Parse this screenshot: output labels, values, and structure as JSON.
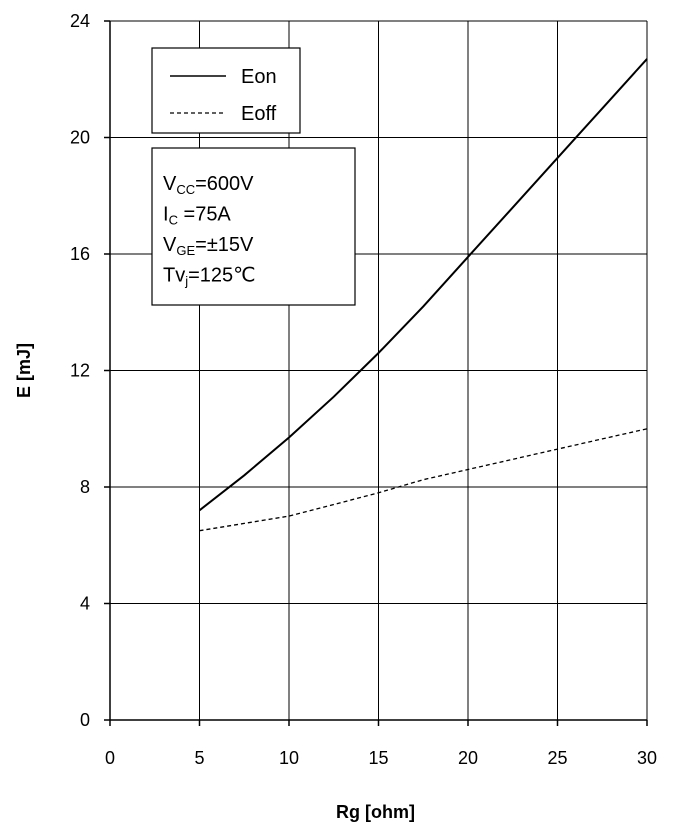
{
  "chart_data": {
    "type": "line",
    "title": "",
    "xlabel": "Rg  [ohm]",
    "ylabel": "E  [mJ]",
    "xlim": [
      0,
      30
    ],
    "ylim": [
      0,
      24
    ],
    "x_ticks": [
      "0",
      "5",
      "10",
      "15",
      "20",
      "25",
      "30"
    ],
    "y_ticks": [
      "0",
      "4",
      "8",
      "12",
      "16",
      "20",
      "24"
    ],
    "grid": true,
    "legend_position": "top-left",
    "series": [
      {
        "name": "Eon",
        "style": "solid",
        "x": [
          5,
          7.5,
          10,
          12.5,
          15,
          17.5,
          20,
          22.5,
          25,
          27.5,
          30
        ],
        "y": [
          7.2,
          8.4,
          9.7,
          11.1,
          12.6,
          14.2,
          15.9,
          17.6,
          19.3,
          21.0,
          22.7
        ]
      },
      {
        "name": "Eoff",
        "style": "dashed",
        "x": [
          5,
          7.5,
          10,
          12.5,
          15,
          17.5,
          20,
          22.5,
          25,
          27.5,
          30
        ],
        "y": [
          6.5,
          6.75,
          7.0,
          7.4,
          7.8,
          8.25,
          8.6,
          8.95,
          9.3,
          9.65,
          10.0
        ]
      }
    ],
    "conditions": [
      {
        "main": "V",
        "sub": "CC",
        "rest": "=600V"
      },
      {
        "main": "I",
        "sub": "C",
        "rest": " =75A"
      },
      {
        "main": "V",
        "sub": "GE",
        "rest": "=±15V"
      },
      {
        "main": "Tv",
        "sub": "j",
        "rest": "=125℃"
      }
    ]
  }
}
